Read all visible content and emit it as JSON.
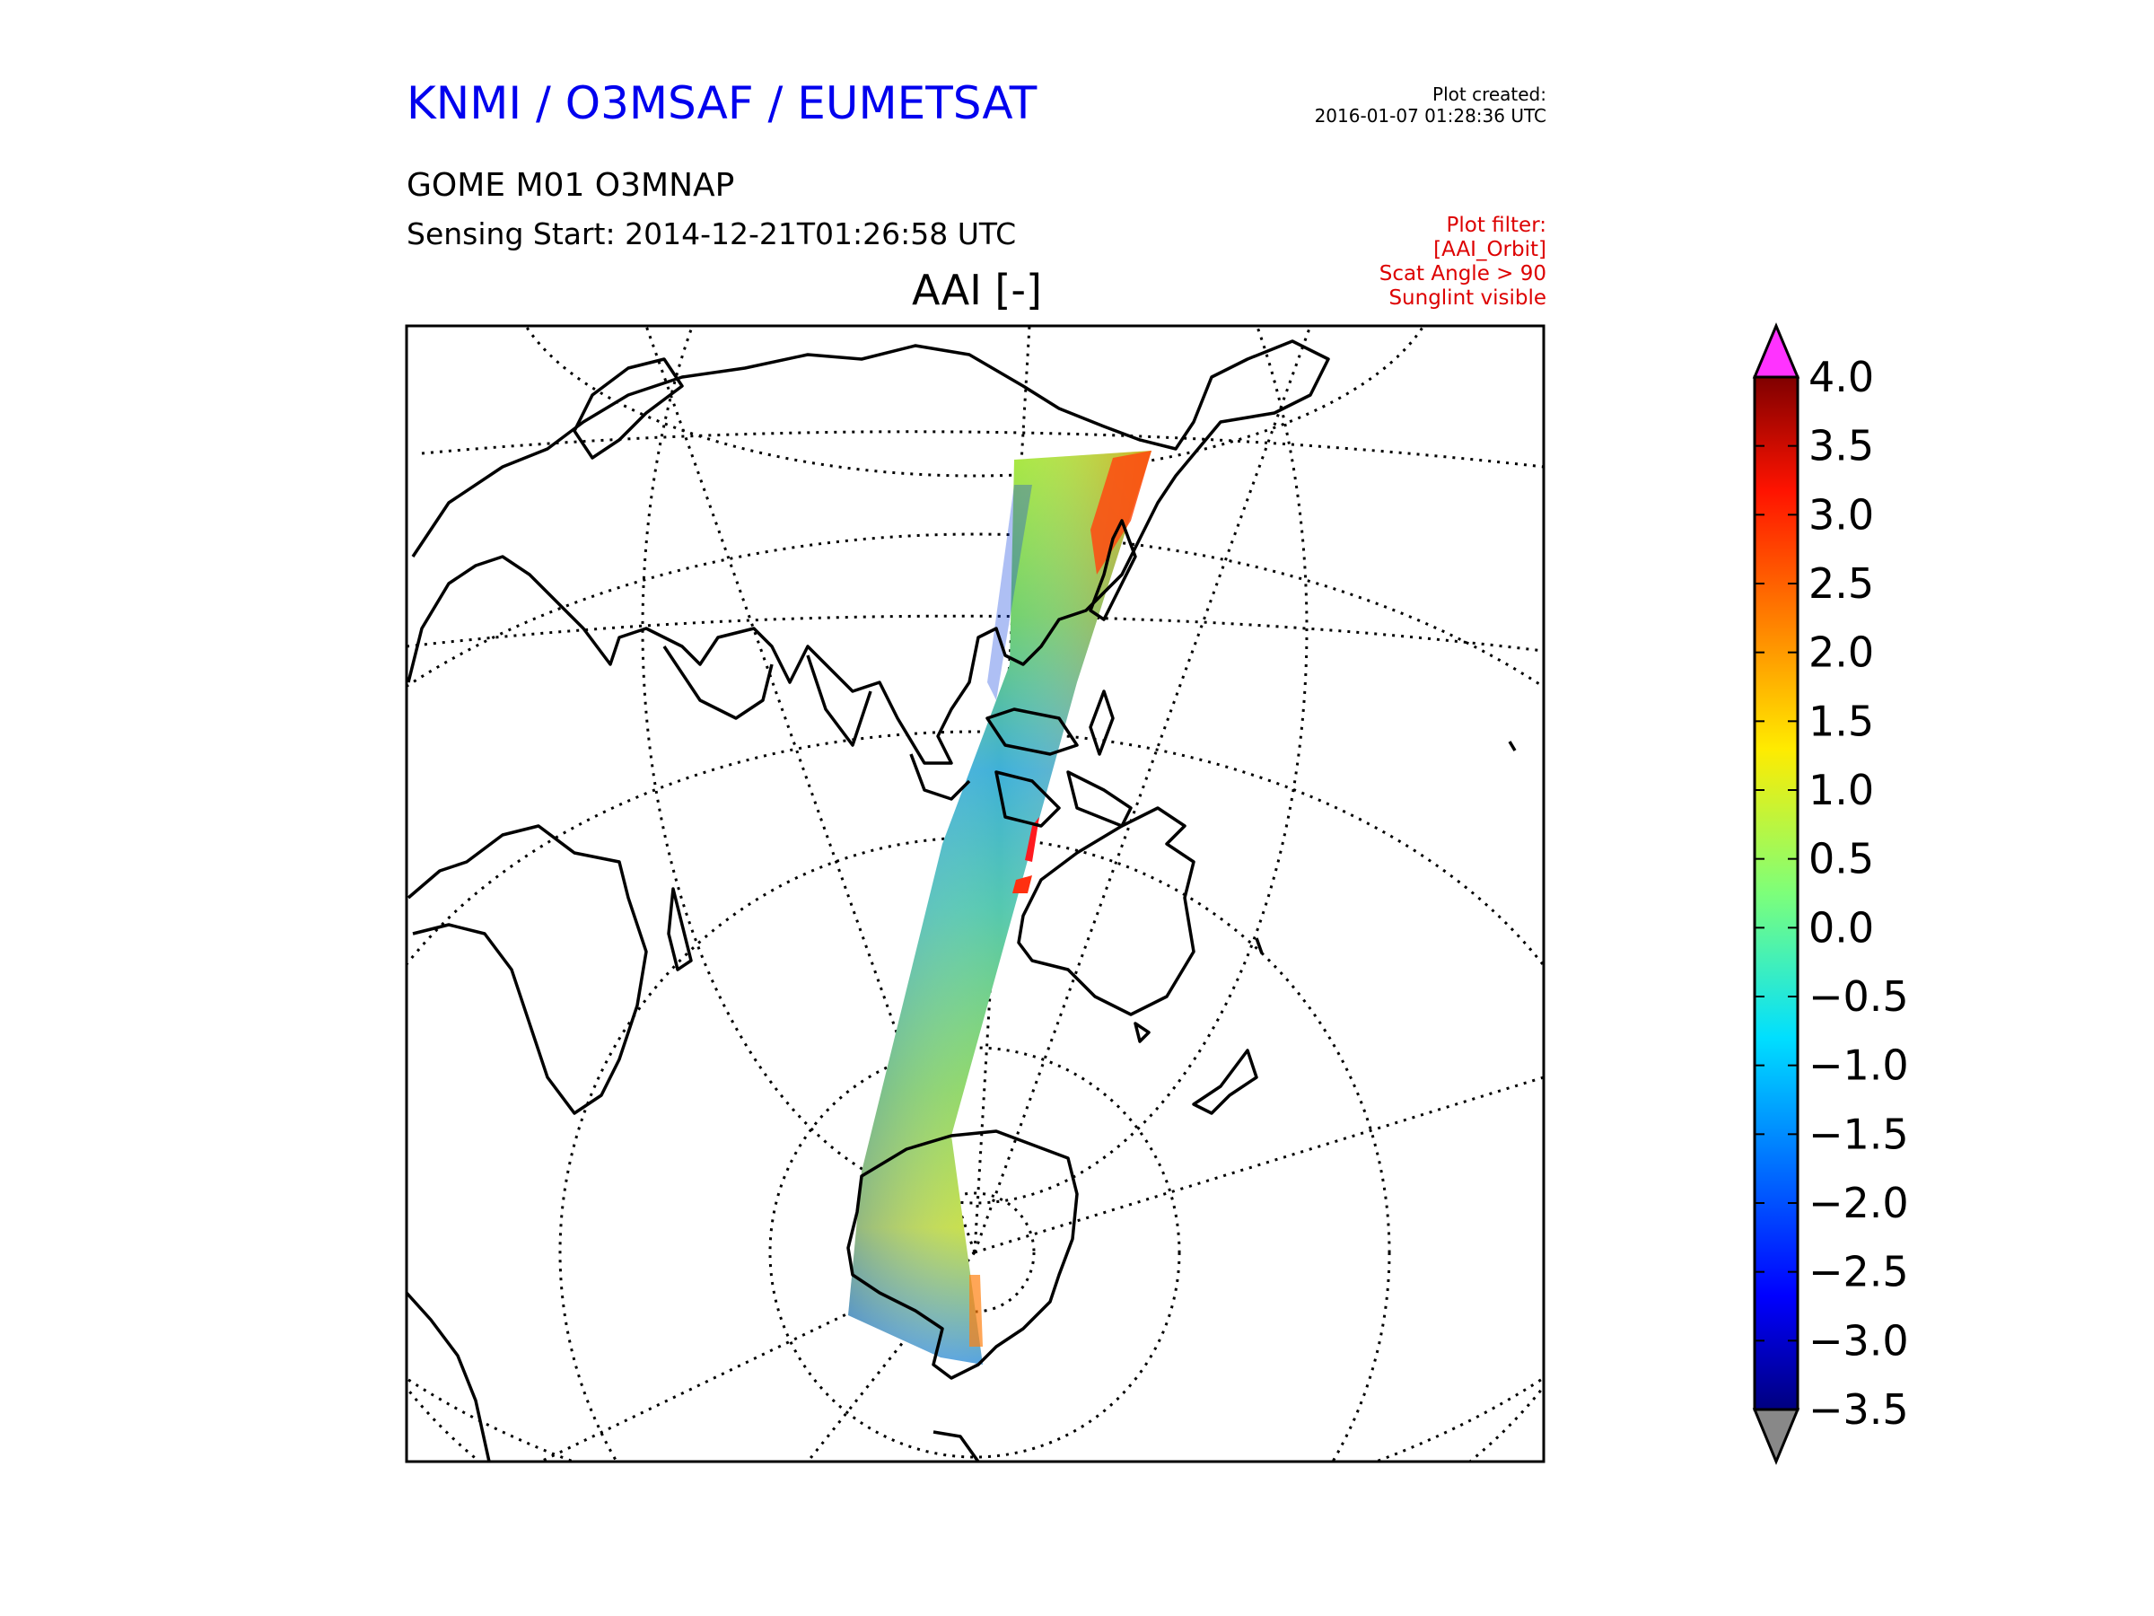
{
  "header": {
    "organization": "KNMI / O3MSAF / EUMETSAT",
    "plot_created_label": "Plot created:",
    "plot_created_time": "2016-01-07 01:28:36 UTC",
    "product": "GOME M01 O3MNAP",
    "sensing_start": "Sensing Start: 2014-12-21T01:26:58 UTC",
    "org_color": "#0000ee"
  },
  "plot_filter": {
    "title": "Plot filter:",
    "lines": [
      "[AAI_Orbit]",
      "Scat Angle > 90",
      "Sunglint visible"
    ],
    "color": "#dd0000"
  },
  "map": {
    "title": "AAI [-]",
    "projection": "azimuthal (south-pole centred)",
    "features": [
      "coastlines",
      "graticule-dotted",
      "satellite-swath"
    ]
  },
  "colorbar": {
    "ticks": [
      "4.0",
      "3.5",
      "3.0",
      "2.5",
      "2.0",
      "1.5",
      "1.0",
      "0.5",
      "0.0",
      "−0.5",
      "−1.0",
      "−1.5",
      "−2.0",
      "−2.5",
      "−3.0",
      "−3.5"
    ],
    "min": -3.5,
    "max": 4.0,
    "colormap": "jet",
    "over_color": "#ff33ff",
    "under_color": "#888888"
  }
}
